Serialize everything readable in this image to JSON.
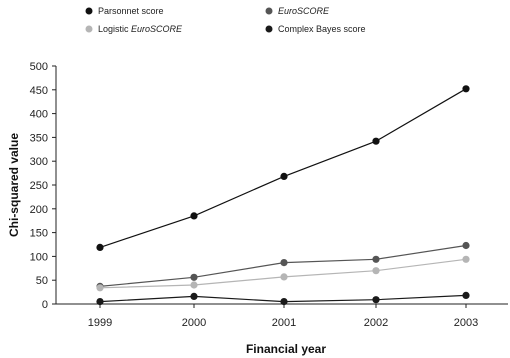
{
  "chart_data": {
    "type": "line",
    "xlabel": "Financial year",
    "ylabel": "Chi-squared value",
    "categories": [
      "1999",
      "2000",
      "2001",
      "2002",
      "2003"
    ],
    "ylim": [
      0,
      500
    ],
    "yticks": [
      0,
      50,
      100,
      150,
      200,
      250,
      300,
      350,
      400,
      450,
      500
    ],
    "grid": false,
    "legend_position": "top",
    "series": [
      {
        "name": "Parsonnet score",
        "italic_name": false,
        "color": "#111111",
        "values": [
          119,
          185,
          268,
          342,
          452
        ]
      },
      {
        "name": "EuroSCORE",
        "italic_name": true,
        "color": "#555555",
        "values": [
          37,
          56,
          87,
          94,
          123
        ]
      },
      {
        "name": "Logistic EuroSCORE",
        "italic_name": false,
        "color": "#b5b5b5",
        "values": [
          34,
          40,
          57,
          70,
          94
        ]
      },
      {
        "name": "Complex Bayes score",
        "italic_name": false,
        "color": "#1a1a1a",
        "values": [
          5,
          16,
          5,
          9,
          18
        ]
      }
    ]
  }
}
